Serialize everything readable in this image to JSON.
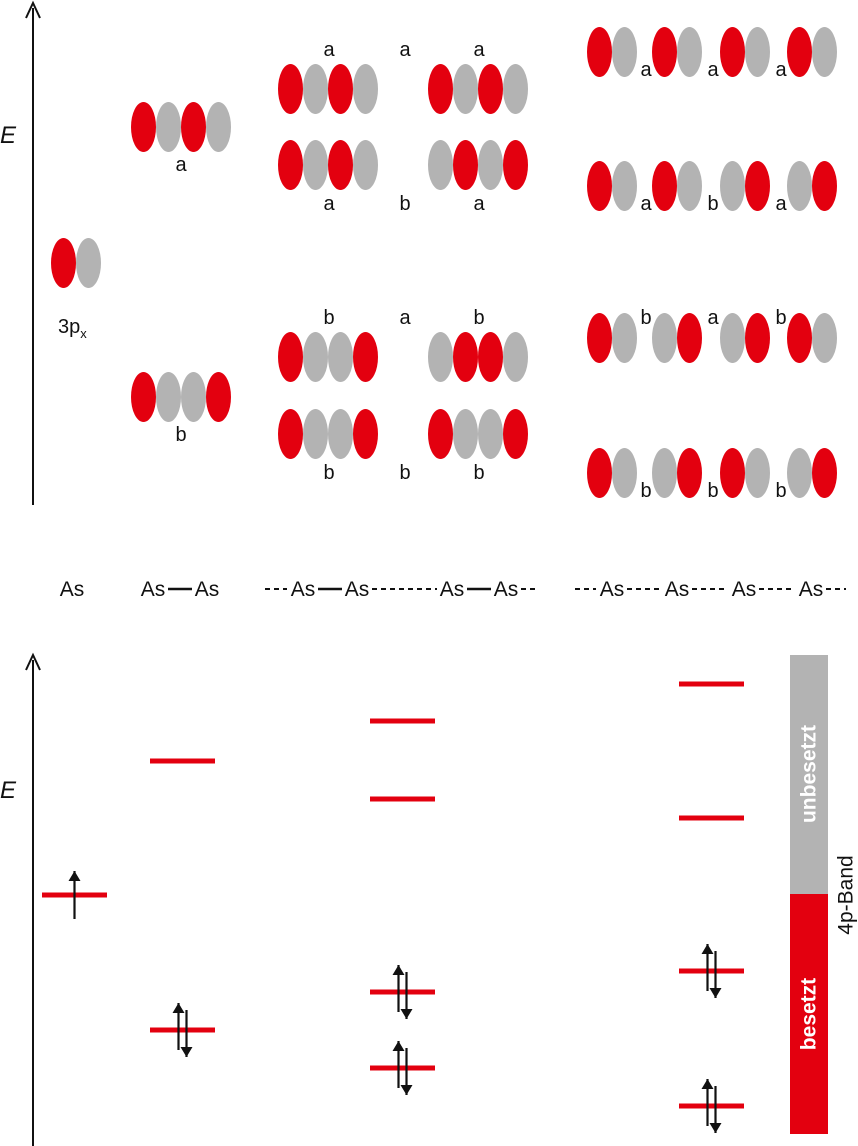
{
  "colors": {
    "red": "#e3000f",
    "gray": "#b3b3b3",
    "axis": "#111111",
    "line": "#111111"
  },
  "axis_label": "E",
  "orbital_label": {
    "main": "3p",
    "sub": "x"
  },
  "orbital_labels": {
    "a": "a",
    "b": "b"
  },
  "chains": [
    "As",
    "As—As",
    "- - As—As- - - - - - -As—As- -",
    "- -As- - - As- - -As- - - As- -"
  ],
  "chain_parts": {
    "c1": "As",
    "c2a": "As",
    "c2b": "As",
    "c3a": "As",
    "c3b": "As",
    "c3c": "As",
    "c3d": "As",
    "c4a": "As",
    "c4b": "As",
    "c4c": "As",
    "c4d": "As"
  },
  "band": {
    "name": "4p-Band",
    "occupied": "besetzt",
    "unoccupied": "unbesetzt"
  },
  "levels": {
    "atom": [
      "singly occupied"
    ],
    "dimer": [
      "occupied",
      "empty"
    ],
    "tetramer": [
      "occupied",
      "occupied",
      "empty",
      "empty"
    ],
    "chain": [
      "occupied",
      "occupied",
      "empty",
      "empty"
    ]
  }
}
